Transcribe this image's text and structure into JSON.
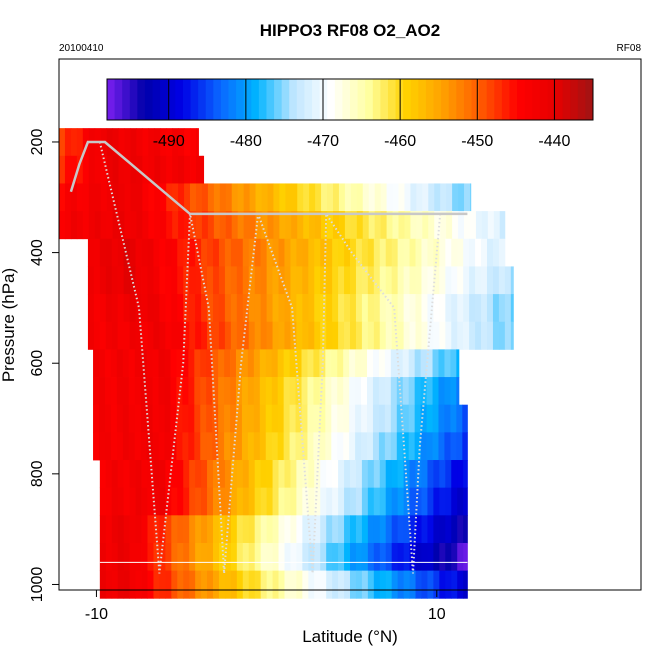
{
  "chart_data": {
    "type": "heatmap",
    "title": "HIPPO3 RF08 O2_AO2",
    "date_label": "20100410",
    "flight_label": "RF08",
    "xlabel": "Latitude (°N)",
    "ylabel": "Pressure (hPa)",
    "xlim": [
      -12.2,
      22.0
    ],
    "ylim": [
      1010,
      50
    ],
    "y_reversed": true,
    "x_ticks": [
      -10,
      10
    ],
    "x_tick_labels": [
      "-10",
      "10"
    ],
    "y_ticks": [
      200,
      400,
      600,
      800,
      1000
    ],
    "y_tick_labels": [
      "200",
      "400",
      "600",
      "800",
      "1000"
    ],
    "colorbar": {
      "range": [
        -498,
        -435
      ],
      "ticks": [
        -490,
        -480,
        -470,
        -460,
        -450,
        -440
      ],
      "tick_labels": [
        "-490",
        "-480",
        "-470",
        "-460",
        "-450",
        "-440"
      ],
      "stops": [
        "#7b1ff0",
        "#0000aa",
        "#0000e6",
        "#0a64ff",
        "#00b4ff",
        "#bfe6ff",
        "#ffffff",
        "#ffffa0",
        "#ffd200",
        "#ffa000",
        "#ff5a00",
        "#ff0000",
        "#e60000",
        "#a01414"
      ]
    },
    "row_pressures": [
      200,
      250,
      300,
      350,
      400,
      450,
      500,
      550,
      600,
      650,
      700,
      750,
      800,
      850,
      900,
      950,
      1000
    ],
    "cell_width_deg": 0.35,
    "series": [
      {
        "row": 0,
        "x_start": -12.2,
        "x_end": -4.0,
        "left_value": -449,
        "right_value": -444,
        "peak_x": -9.6,
        "peak_value": -441
      },
      {
        "row": 1,
        "x_start": -12.2,
        "x_end": -3.7,
        "left_value": -447,
        "right_value": -443,
        "peak_x": -9.0,
        "peak_value": -441
      },
      {
        "row": 2,
        "x_start": -12.2,
        "x_end": 12.0,
        "left_value": -444,
        "right_value": -476,
        "peak_x": -8.0,
        "peak_value": -441
      },
      {
        "row": 3,
        "x_start": -12.2,
        "x_end": 14.0,
        "left_value": -443,
        "right_value": -472,
        "peak_x": -8.0,
        "peak_value": -441
      },
      {
        "row": 4,
        "x_start": -10.5,
        "x_end": 14.0,
        "left_value": -442,
        "right_value": -472,
        "peak_x": -8.0,
        "peak_value": -440
      },
      {
        "row": 5,
        "x_start": -10.5,
        "x_end": 14.5,
        "left_value": -442,
        "right_value": -474,
        "peak_x": -8.0,
        "peak_value": -440
      },
      {
        "row": 6,
        "x_start": -10.5,
        "x_end": 14.5,
        "left_value": -443,
        "right_value": -476,
        "peak_x": -7.0,
        "peak_value": -441
      },
      {
        "row": 7,
        "x_start": -10.5,
        "x_end": 14.5,
        "left_value": -443,
        "right_value": -476,
        "peak_x": -6.0,
        "peak_value": -442
      },
      {
        "row": 8,
        "x_start": -10.2,
        "x_end": 11.3,
        "left_value": -443,
        "right_value": -478,
        "peak_x": -6.0,
        "peak_value": -442
      },
      {
        "row": 9,
        "x_start": -10.2,
        "x_end": 11.3,
        "left_value": -443,
        "right_value": -482,
        "peak_x": -6.0,
        "peak_value": -442
      },
      {
        "row": 10,
        "x_start": -10.2,
        "x_end": 11.8,
        "left_value": -443,
        "right_value": -484,
        "peak_x": -6.0,
        "peak_value": -442
      },
      {
        "row": 11,
        "x_start": -10.2,
        "x_end": 11.8,
        "left_value": -443,
        "right_value": -486,
        "peak_x": -6.0,
        "peak_value": -442
      },
      {
        "row": 12,
        "x_start": -9.8,
        "x_end": 11.8,
        "left_value": -443,
        "right_value": -489,
        "peak_x": -6.0,
        "peak_value": -442
      },
      {
        "row": 13,
        "x_start": -9.8,
        "x_end": 11.8,
        "left_value": -443,
        "right_value": -491,
        "peak_x": -6.0,
        "peak_value": -442
      },
      {
        "row": 14,
        "x_start": -9.8,
        "x_end": 11.8,
        "left_value": -442,
        "right_value": -494,
        "peak_x": -8.0,
        "peak_value": -441
      },
      {
        "row": 15,
        "x_start": -9.8,
        "x_end": 11.8,
        "left_value": -442,
        "right_value": -497,
        "peak_x": -8.0,
        "peak_value": -441
      },
      {
        "row": 16,
        "x_start": -9.8,
        "x_end": 11.8,
        "left_value": -442,
        "right_value": -490,
        "peak_x": -8.0,
        "peak_value": -441
      }
    ],
    "flight_track": {
      "solid_points": [
        [
          -11.5,
          290
        ],
        [
          -11.0,
          240
        ],
        [
          -10.5,
          200
        ],
        [
          -9.5,
          200
        ],
        [
          -4.5,
          330
        ],
        [
          -4.0,
          330
        ],
        [
          -0.5,
          330
        ],
        [
          0.5,
          330
        ],
        [
          3.5,
          330
        ],
        [
          4.2,
          330
        ],
        [
          8.0,
          330
        ],
        [
          9.0,
          330
        ],
        [
          11.8,
          330
        ]
      ],
      "dotted_points": [
        [
          -9.8,
          200
        ],
        [
          -7.5,
          500
        ],
        [
          -6.3,
          980
        ],
        [
          -4.9,
          600
        ],
        [
          -4.5,
          330
        ],
        [
          -3.4,
          500
        ],
        [
          -2.5,
          980
        ],
        [
          -1.5,
          600
        ],
        [
          -0.5,
          330
        ],
        [
          1.5,
          500
        ],
        [
          2.7,
          980
        ],
        [
          3.3,
          600
        ],
        [
          3.5,
          330
        ],
        [
          5.0,
          400
        ],
        [
          7.5,
          500
        ],
        [
          8.6,
          980
        ],
        [
          9.0,
          750
        ],
        [
          10.2,
          330
        ]
      ]
    },
    "surface_line_pressure": 960,
    "grid": false,
    "legend": "top (horizontal colorbar inside plot)"
  }
}
